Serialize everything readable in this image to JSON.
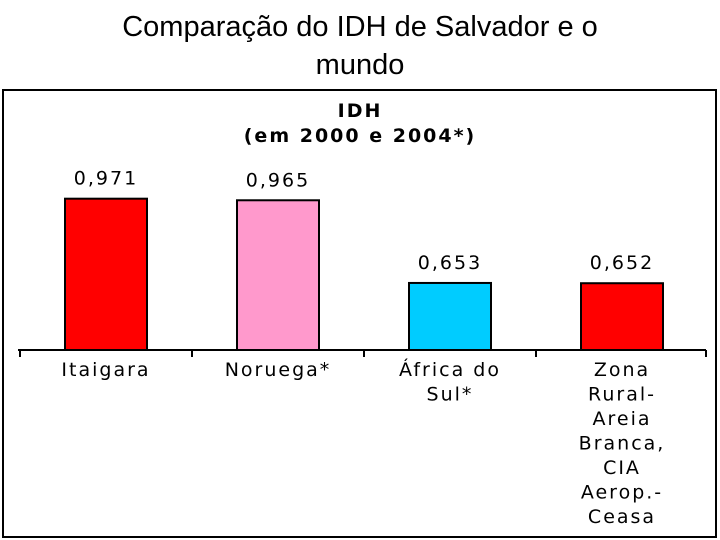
{
  "slide": {
    "title_line1": "Comparação do IDH de Salvador e o",
    "title_line2": "mundo"
  },
  "chart_data": {
    "type": "bar",
    "title": "IDH",
    "subtitle": "(em 2000 e 2004*)",
    "categories": [
      [
        "Itaigara"
      ],
      [
        "Noruega*"
      ],
      [
        "África do",
        "Sul*"
      ],
      [
        "Zona",
        "Rural-",
        "Areia",
        "Branca,",
        "CIA",
        "Aerop.-",
        "Ceasa"
      ]
    ],
    "values": [
      0.971,
      0.965,
      0.653,
      0.652
    ],
    "value_labels": [
      "0,971",
      "0,965",
      "0,653",
      "0,652"
    ],
    "bar_colors": [
      "#ff0000",
      "#ff99cc",
      "#00ccff",
      "#ff0000"
    ],
    "ylim": [
      0.4,
      1.0
    ],
    "grid": false,
    "legend": "none"
  }
}
